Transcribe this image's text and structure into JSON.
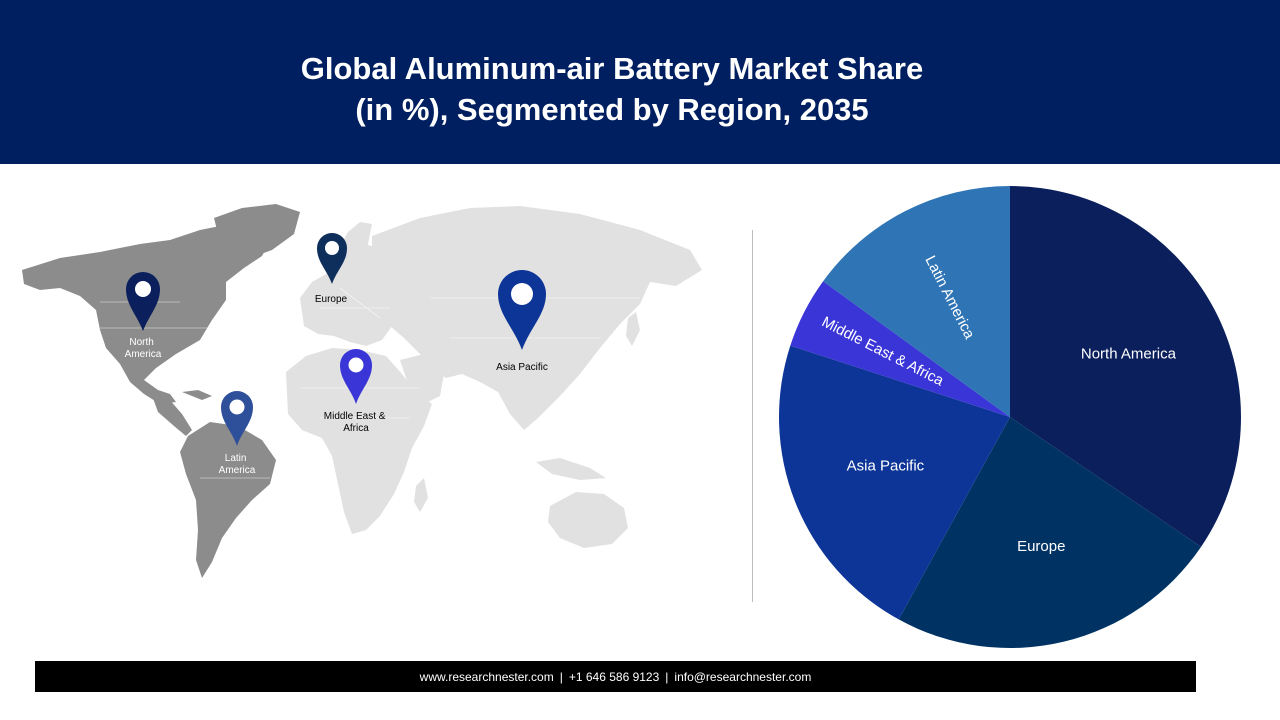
{
  "header": {
    "title_line1": "Global Aluminum-air Battery Market Share",
    "title_line2": "(in %), Segmented by Region, 2035"
  },
  "map": {
    "pins": [
      {
        "id": "north-america",
        "label_lines": [
          "North",
          "America"
        ],
        "color": "#0a1f5c"
      },
      {
        "id": "europe",
        "label_lines": [
          "Europe"
        ],
        "color": "#0e2f5c"
      },
      {
        "id": "asia-pacific",
        "label_lines": [
          "Asia Pacific"
        ],
        "color": "#0d3597"
      },
      {
        "id": "middle-east-africa",
        "label_lines": [
          "Middle East &",
          "Africa"
        ],
        "color": "#3a35d6"
      },
      {
        "id": "latin-america",
        "label_lines": [
          "Latin",
          "America"
        ],
        "color": "#2e4f9a"
      }
    ]
  },
  "chart_data": {
    "type": "pie",
    "title": "Global Aluminum-air Battery Market Share (in %), Segmented by Region, 2035",
    "start_angle_deg": 0,
    "direction": "clockwise",
    "slices": [
      {
        "label": "North America",
        "value": 34.5,
        "color": "#0a1f5c"
      },
      {
        "label": "Europe",
        "value": 23.5,
        "color": "#003363"
      },
      {
        "label": "Asia Pacific",
        "value": 22.0,
        "color": "#0d3597"
      },
      {
        "label": "Middle East & Africa",
        "value": 5.0,
        "color": "#3a35d6"
      },
      {
        "label": "Latin America",
        "value": 15.0,
        "color": "#2f75b6"
      }
    ]
  },
  "footer": {
    "website": "www.researchnester.com",
    "phone": "+1 646 586 9123",
    "email": "info@researchnester.com",
    "separator": "|"
  }
}
